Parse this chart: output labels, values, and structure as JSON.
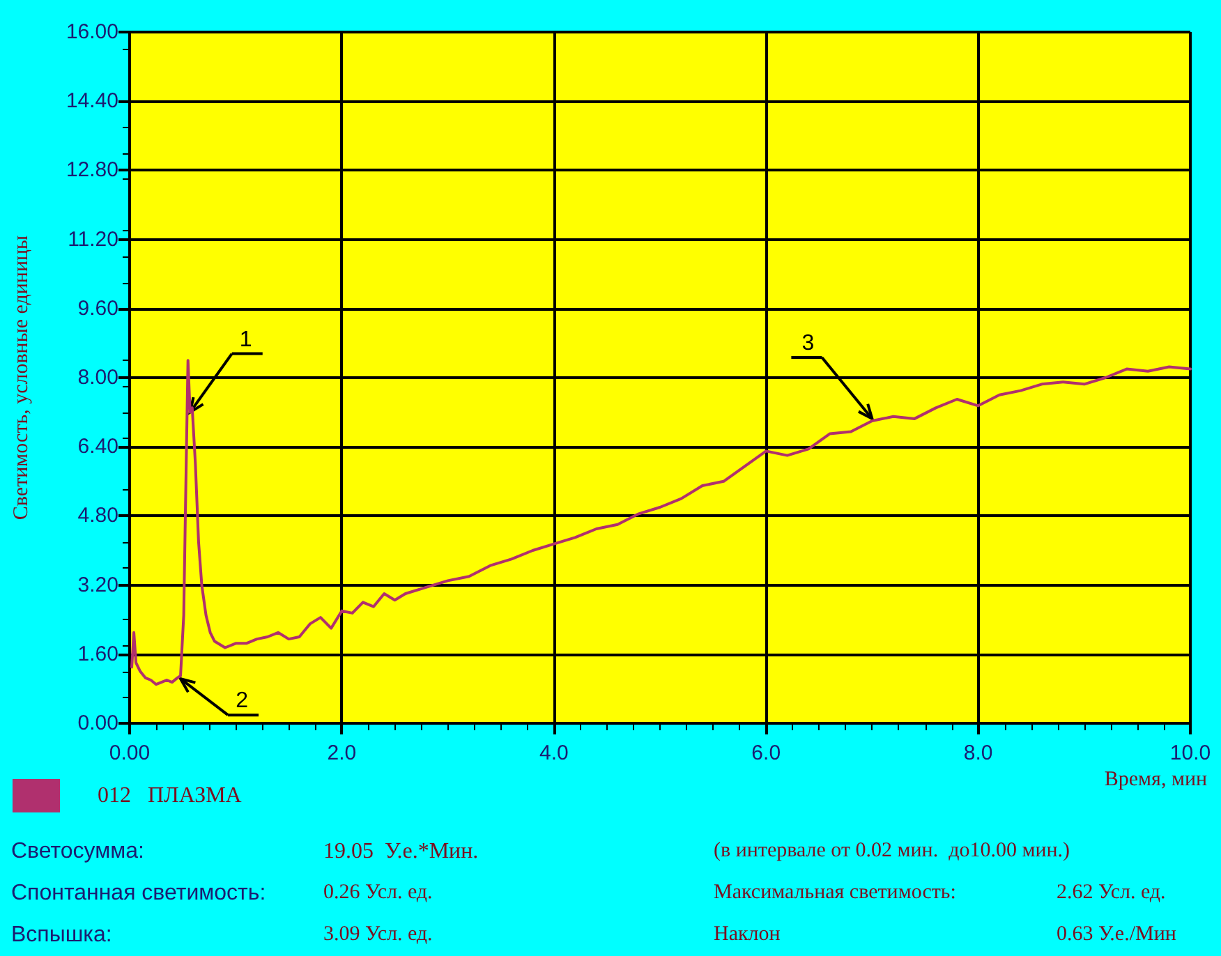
{
  "chart_data": {
    "type": "line",
    "xlabel": "Время, мин",
    "ylabel": "Светимость, условные единицы",
    "xlim": [
      0,
      10
    ],
    "xticks": [
      {
        "value": 0,
        "label": "0.00"
      },
      {
        "value": 2,
        "label": "2.0"
      },
      {
        "value": 4,
        "label": "4.0"
      },
      {
        "value": 6,
        "label": "6.0"
      },
      {
        "value": 8,
        "label": "8.0"
      },
      {
        "value": 10,
        "label": "10.0"
      }
    ],
    "ylim": [
      0,
      16
    ],
    "yticks": [
      {
        "value": 0,
        "label": "0.00"
      },
      {
        "value": 1.6,
        "label": "1.60"
      },
      {
        "value": 3.2,
        "label": "3.20"
      },
      {
        "value": 4.8,
        "label": "4.80"
      },
      {
        "value": 6.4,
        "label": "6.40"
      },
      {
        "value": 8,
        "label": "8.00"
      },
      {
        "value": 9.6,
        "label": "9.60"
      },
      {
        "value": 11.2,
        "label": "11.20"
      },
      {
        "value": 12.8,
        "label": "12.80"
      },
      {
        "value": 14.4,
        "label": "14.40"
      },
      {
        "value": 16,
        "label": "16.00"
      }
    ],
    "grid": true,
    "legend": "bottom left",
    "marker": "none",
    "line_style": "solid",
    "series": [
      {
        "name": "012   ПЛАЗМА",
        "color": "#b0306e",
        "x": [
          0.02,
          0.04,
          0.06,
          0.1,
          0.15,
          0.2,
          0.25,
          0.3,
          0.35,
          0.4,
          0.45,
          0.48,
          0.51,
          0.53,
          0.55,
          0.57,
          0.59,
          0.62,
          0.65,
          0.68,
          0.72,
          0.76,
          0.8,
          0.9,
          1.0,
          1.1,
          1.2,
          1.3,
          1.4,
          1.5,
          1.6,
          1.7,
          1.8,
          1.9,
          2.0,
          2.1,
          2.2,
          2.3,
          2.4,
          2.5,
          2.6,
          2.8,
          3.0,
          3.2,
          3.4,
          3.6,
          3.8,
          4.0,
          4.2,
          4.4,
          4.6,
          4.8,
          5.0,
          5.2,
          5.4,
          5.6,
          5.8,
          6.0,
          6.2,
          6.4,
          6.6,
          6.8,
          7.0,
          7.2,
          7.4,
          7.6,
          7.8,
          8.0,
          8.2,
          8.4,
          8.6,
          8.8,
          9.0,
          9.2,
          9.4,
          9.6,
          9.8,
          10.0
        ],
        "values": [
          1.3,
          2.1,
          1.4,
          1.2,
          1.05,
          1.0,
          0.9,
          0.95,
          1.0,
          0.95,
          1.05,
          1.1,
          2.5,
          5.5,
          8.4,
          7.2,
          7.3,
          6.0,
          4.2,
          3.2,
          2.5,
          2.1,
          1.9,
          1.75,
          1.85,
          1.85,
          1.95,
          2.0,
          2.1,
          1.95,
          2.0,
          2.3,
          2.45,
          2.2,
          2.6,
          2.55,
          2.8,
          2.7,
          3.0,
          2.85,
          3.0,
          3.15,
          3.3,
          3.4,
          3.65,
          3.8,
          4.0,
          4.15,
          4.3,
          4.5,
          4.6,
          4.85,
          5.0,
          5.2,
          5.5,
          5.6,
          5.95,
          6.3,
          6.2,
          6.35,
          6.7,
          6.75,
          7.0,
          7.1,
          7.05,
          7.3,
          7.5,
          7.35,
          7.6,
          7.7,
          7.85,
          7.9,
          7.85,
          8.0,
          8.2,
          8.15,
          8.25,
          8.2
        ]
      }
    ],
    "annotations": [
      {
        "text": "1",
        "x": 0.57,
        "y": 7.2
      },
      {
        "text": "2",
        "x": 0.48,
        "y": 1.03
      },
      {
        "text": "3",
        "x": 7.0,
        "y": 7.05
      },
      "Светосумма:",
      "19.05  У.е.*Мин.",
      "(в интервале от 0.02 мин.  до10.00 мин.)",
      "Спонтанная светимость:",
      "0.26 Усл. ед.",
      "Максимальная светимость:",
      "2.62 Усл. ед.",
      "Вспышка:",
      "3.09 Усл. ед.",
      "Наклон",
      "0.63 У.е./Мин"
    ]
  }
}
